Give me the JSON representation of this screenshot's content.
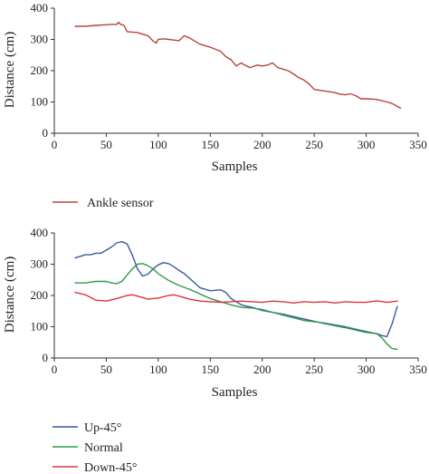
{
  "chart_data": [
    {
      "type": "line",
      "title": "",
      "xlabel": "Samples",
      "ylabel": "Distance (cm)",
      "xlim": [
        0,
        350
      ],
      "ylim": [
        0,
        400
      ],
      "xticks": [
        0,
        50,
        100,
        150,
        200,
        250,
        300,
        350
      ],
      "yticks": [
        0,
        100,
        200,
        300,
        400
      ],
      "grid": false,
      "legend_position": "below",
      "series": [
        {
          "name": "Ankle sensor",
          "color": "#b5453a",
          "x": [
            20,
            30,
            40,
            50,
            55,
            60,
            62,
            63,
            65,
            67,
            70,
            80,
            90,
            95,
            98,
            100,
            105,
            110,
            115,
            120,
            125,
            130,
            140,
            150,
            160,
            165,
            170,
            175,
            180,
            182,
            185,
            188,
            190,
            195,
            200,
            205,
            210,
            215,
            220,
            225,
            230,
            235,
            240,
            245,
            250,
            260,
            270,
            275,
            280,
            285,
            290,
            295,
            300,
            310,
            320,
            325,
            333
          ],
          "y": [
            342,
            342,
            345,
            347,
            348,
            348,
            355,
            350,
            347,
            345,
            325,
            322,
            312,
            295,
            288,
            300,
            302,
            300,
            298,
            296,
            312,
            305,
            285,
            275,
            262,
            245,
            235,
            215,
            225,
            220,
            215,
            210,
            212,
            218,
            215,
            218,
            225,
            210,
            205,
            200,
            190,
            178,
            170,
            158,
            140,
            135,
            130,
            125,
            123,
            126,
            120,
            110,
            110,
            108,
            100,
            95,
            80
          ]
        }
      ]
    },
    {
      "type": "line",
      "title": "",
      "xlabel": "Samples",
      "ylabel": "Distance (cm)",
      "xlim": [
        0,
        350
      ],
      "ylim": [
        0,
        400
      ],
      "xticks": [
        0,
        50,
        100,
        150,
        200,
        250,
        300,
        350
      ],
      "yticks": [
        0,
        100,
        200,
        300,
        400
      ],
      "grid": false,
      "legend_position": "below",
      "series": [
        {
          "name": "Up-45°",
          "color": "#3a5a9e",
          "x": [
            20,
            30,
            35,
            40,
            45,
            50,
            55,
            60,
            65,
            70,
            75,
            80,
            85,
            90,
            95,
            100,
            105,
            110,
            115,
            120,
            125,
            130,
            140,
            150,
            160,
            165,
            170,
            180,
            190,
            200,
            220,
            240,
            260,
            280,
            300,
            310,
            315,
            320,
            325,
            330
          ],
          "y": [
            320,
            330,
            330,
            335,
            335,
            345,
            355,
            368,
            372,
            365,
            330,
            285,
            262,
            268,
            285,
            298,
            305,
            302,
            292,
            280,
            270,
            255,
            225,
            215,
            218,
            210,
            190,
            170,
            162,
            152,
            140,
            125,
            110,
            97,
            82,
            78,
            72,
            68,
            110,
            165
          ],
          "markers": false
        },
        {
          "name": "Normal",
          "color": "#2e9a4a",
          "x": [
            20,
            30,
            40,
            50,
            55,
            60,
            65,
            70,
            75,
            80,
            85,
            90,
            95,
            100,
            110,
            120,
            130,
            140,
            150,
            160,
            170,
            180,
            190,
            200,
            220,
            240,
            260,
            280,
            300,
            310,
            315,
            320,
            325,
            330
          ],
          "y": [
            240,
            240,
            245,
            245,
            240,
            238,
            245,
            265,
            285,
            300,
            302,
            295,
            285,
            270,
            248,
            232,
            220,
            205,
            190,
            180,
            170,
            162,
            160,
            155,
            137,
            120,
            112,
            100,
            85,
            78,
            65,
            45,
            30,
            28
          ]
        },
        {
          "name": "Down-45°",
          "color": "#d9363a",
          "x": [
            20,
            30,
            40,
            50,
            60,
            70,
            75,
            80,
            90,
            100,
            110,
            115,
            120,
            130,
            140,
            150,
            160,
            170,
            180,
            190,
            200,
            210,
            220,
            230,
            240,
            250,
            260,
            270,
            280,
            290,
            300,
            310,
            320,
            330
          ],
          "y": [
            210,
            202,
            185,
            182,
            190,
            200,
            202,
            198,
            188,
            192,
            200,
            202,
            198,
            188,
            182,
            180,
            178,
            180,
            182,
            180,
            178,
            182,
            180,
            176,
            180,
            178,
            180,
            176,
            180,
            178,
            178,
            183,
            178,
            182
          ]
        }
      ]
    }
  ]
}
